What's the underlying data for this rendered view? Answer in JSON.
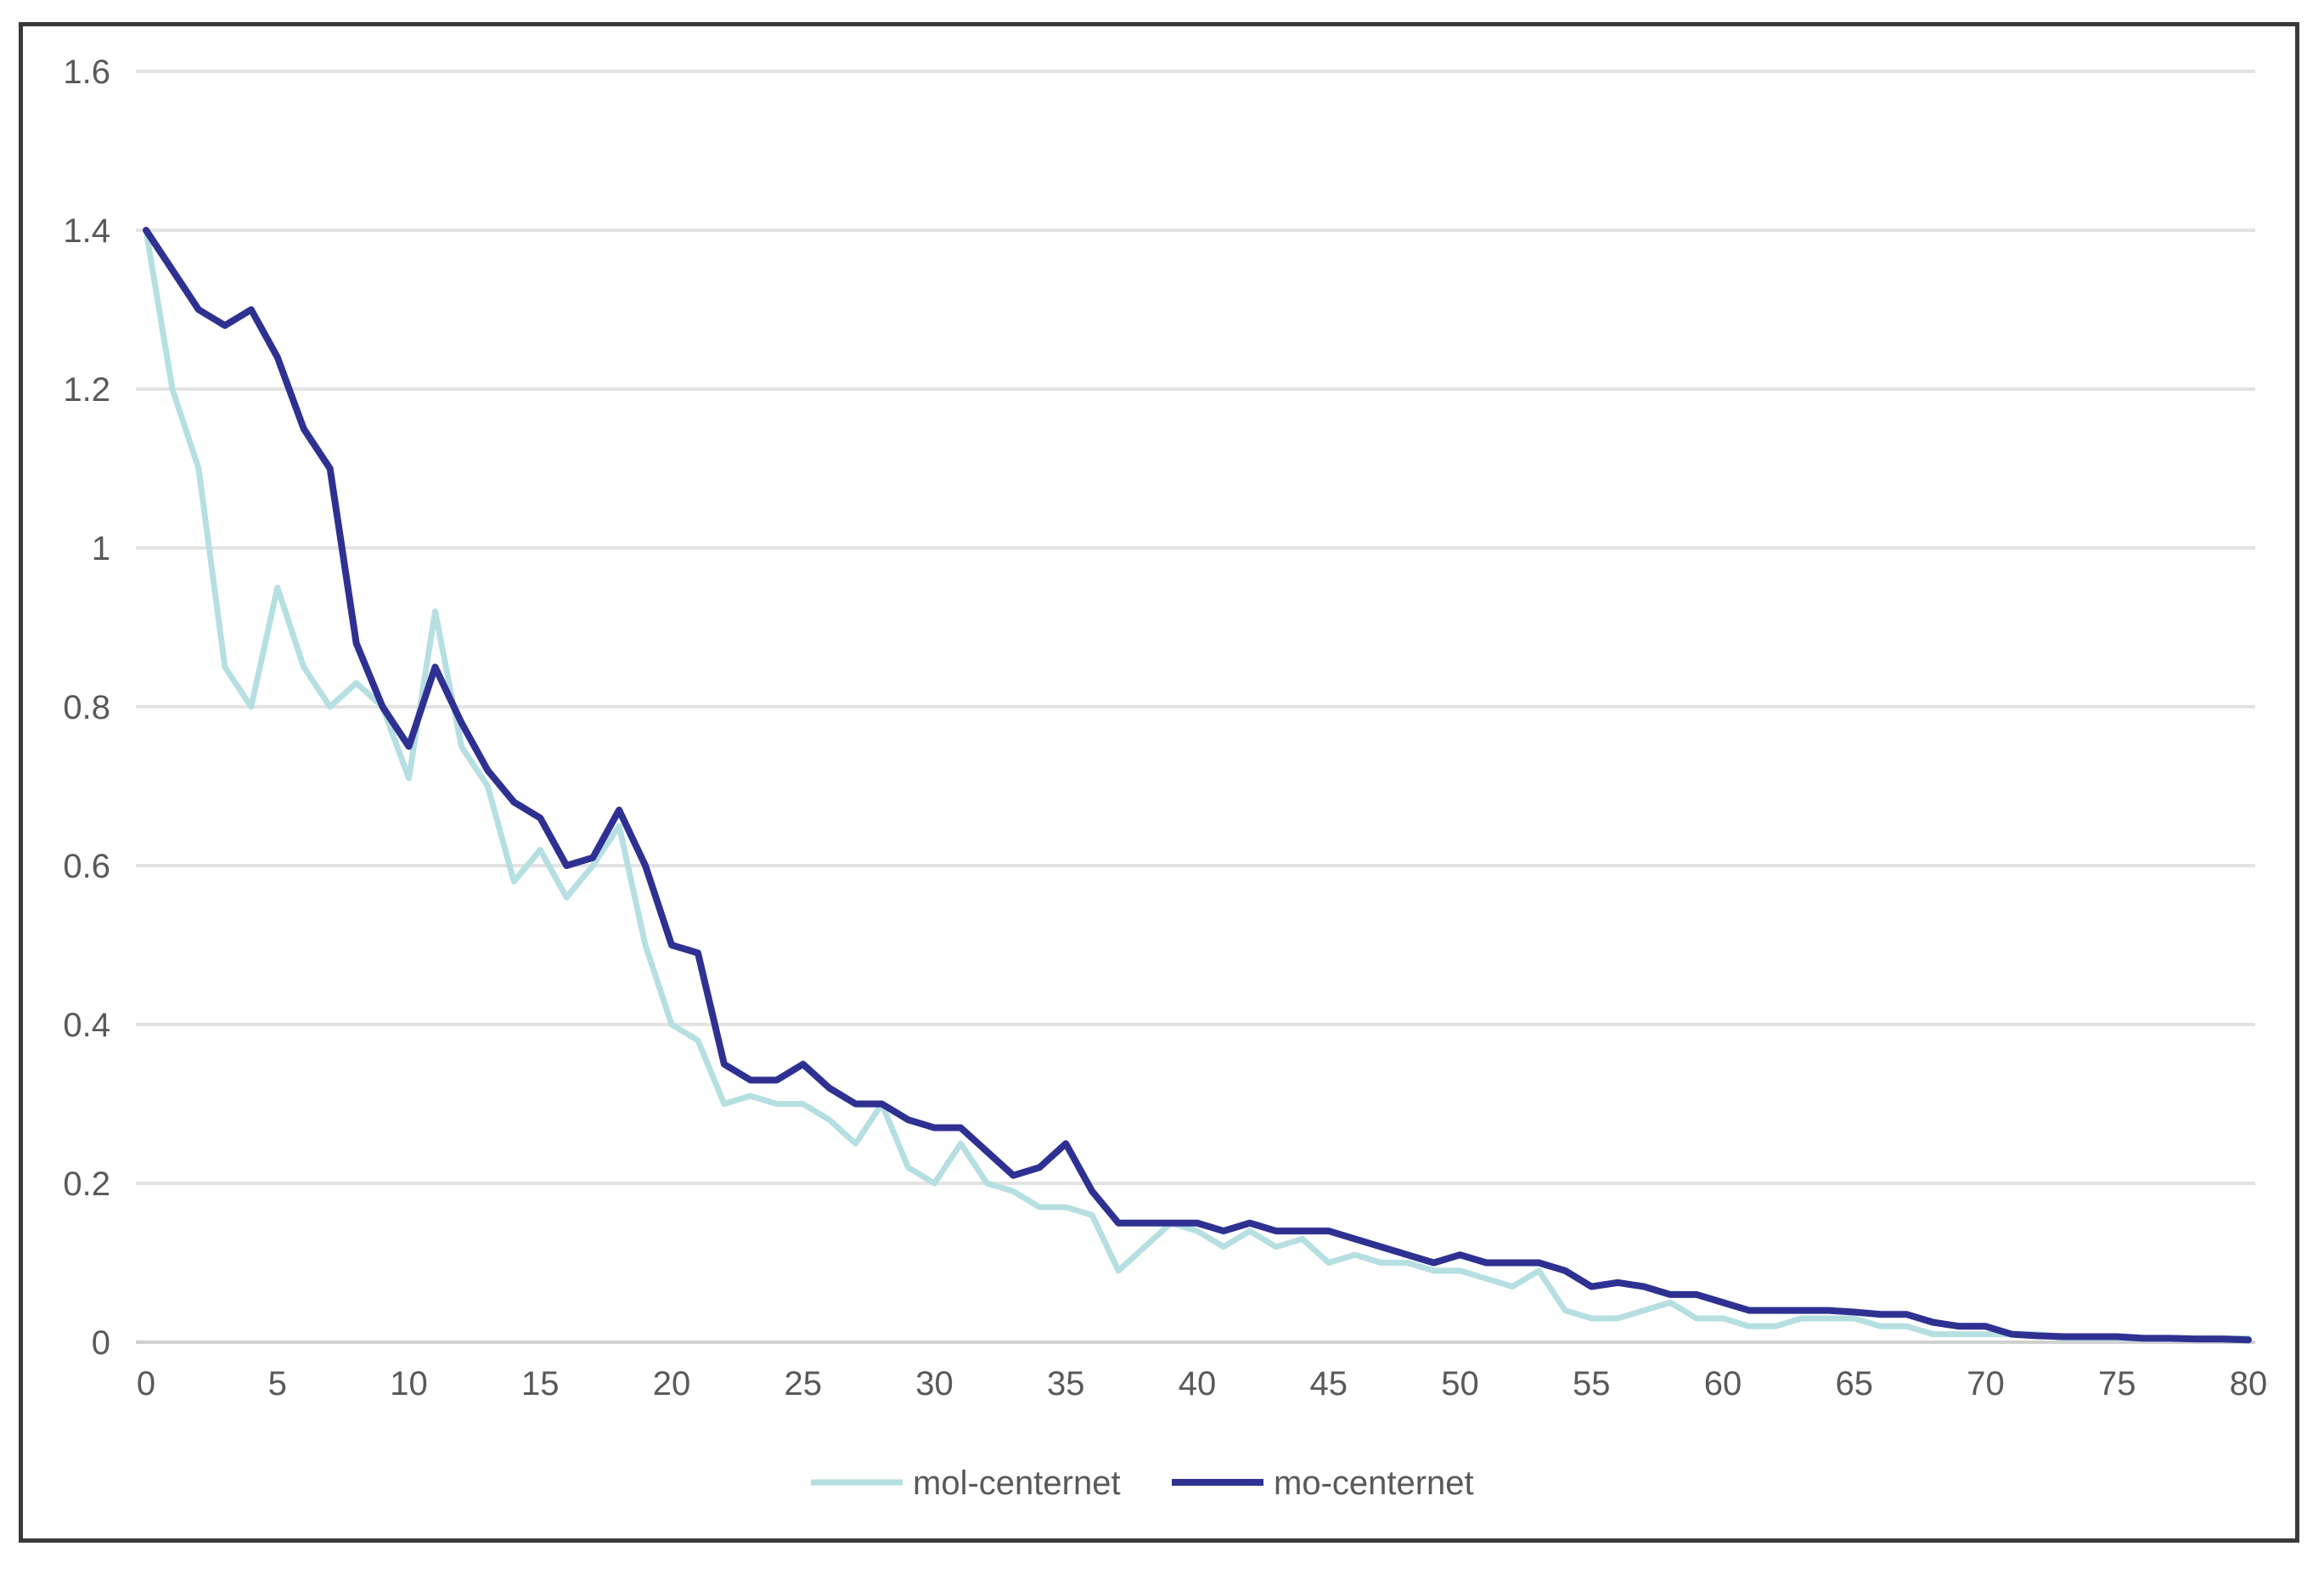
{
  "chart_data": {
    "type": "line",
    "title": "",
    "xlabel": "",
    "ylabel": "",
    "xlim": [
      0,
      80
    ],
    "ylim": [
      0,
      1.6
    ],
    "x_ticks": [
      "0",
      "5",
      "10",
      "15",
      "20",
      "25",
      "30",
      "35",
      "40",
      "45",
      "50",
      "55",
      "60",
      "65",
      "70",
      "75",
      "80"
    ],
    "y_ticks": [
      "0",
      "0.2",
      "0.4",
      "0.6",
      "0.8",
      "1",
      "1.2",
      "1.4",
      "1.6"
    ],
    "grid": "horizontal",
    "legend_position": "bottom",
    "x": [
      0,
      1,
      2,
      3,
      4,
      5,
      6,
      7,
      8,
      9,
      10,
      11,
      12,
      13,
      14,
      15,
      16,
      17,
      18,
      19,
      20,
      21,
      22,
      23,
      24,
      25,
      26,
      27,
      28,
      29,
      30,
      31,
      32,
      33,
      34,
      35,
      36,
      37,
      38,
      39,
      40,
      41,
      42,
      43,
      44,
      45,
      46,
      47,
      48,
      49,
      50,
      51,
      52,
      53,
      54,
      55,
      56,
      57,
      58,
      59,
      60,
      61,
      62,
      63,
      64,
      65,
      66,
      67,
      68,
      69,
      70,
      71,
      72,
      73,
      74,
      75,
      76,
      77,
      78,
      79,
      80
    ],
    "series": [
      {
        "name": "mol-centernet",
        "color": "#b6dfe2",
        "values": [
          1.4,
          1.2,
          1.1,
          0.85,
          0.8,
          0.95,
          0.85,
          0.8,
          0.83,
          0.8,
          0.71,
          0.92,
          0.75,
          0.7,
          0.58,
          0.62,
          0.56,
          0.6,
          0.65,
          0.5,
          0.4,
          0.38,
          0.3,
          0.31,
          0.3,
          0.3,
          0.28,
          0.25,
          0.3,
          0.22,
          0.2,
          0.25,
          0.2,
          0.19,
          0.17,
          0.17,
          0.16,
          0.09,
          0.12,
          0.15,
          0.14,
          0.12,
          0.14,
          0.12,
          0.13,
          0.1,
          0.11,
          0.1,
          0.1,
          0.09,
          0.09,
          0.08,
          0.07,
          0.09,
          0.04,
          0.03,
          0.03,
          0.04,
          0.05,
          0.03,
          0.03,
          0.02,
          0.02,
          0.03,
          0.03,
          0.03,
          0.02,
          0.02,
          0.01,
          0.01,
          0.01,
          0.01,
          0.01,
          0.005,
          0.005,
          0.005,
          0.005,
          0.005,
          0.005,
          0.005,
          0.005
        ]
      },
      {
        "name": "mo-centernet",
        "color": "#2e3192",
        "values": [
          1.4,
          1.35,
          1.3,
          1.28,
          1.3,
          1.24,
          1.15,
          1.1,
          0.88,
          0.8,
          0.75,
          0.85,
          0.78,
          0.72,
          0.68,
          0.66,
          0.6,
          0.61,
          0.67,
          0.6,
          0.5,
          0.49,
          0.35,
          0.33,
          0.33,
          0.35,
          0.32,
          0.3,
          0.3,
          0.28,
          0.27,
          0.27,
          0.24,
          0.21,
          0.22,
          0.25,
          0.19,
          0.15,
          0.15,
          0.15,
          0.15,
          0.14,
          0.15,
          0.14,
          0.14,
          0.14,
          0.13,
          0.12,
          0.11,
          0.1,
          0.11,
          0.1,
          0.1,
          0.1,
          0.09,
          0.07,
          0.075,
          0.07,
          0.06,
          0.06,
          0.05,
          0.04,
          0.04,
          0.04,
          0.04,
          0.038,
          0.035,
          0.035,
          0.025,
          0.02,
          0.02,
          0.01,
          0.008,
          0.007,
          0.007,
          0.007,
          0.005,
          0.005,
          0.004,
          0.004,
          0.003
        ]
      }
    ]
  }
}
